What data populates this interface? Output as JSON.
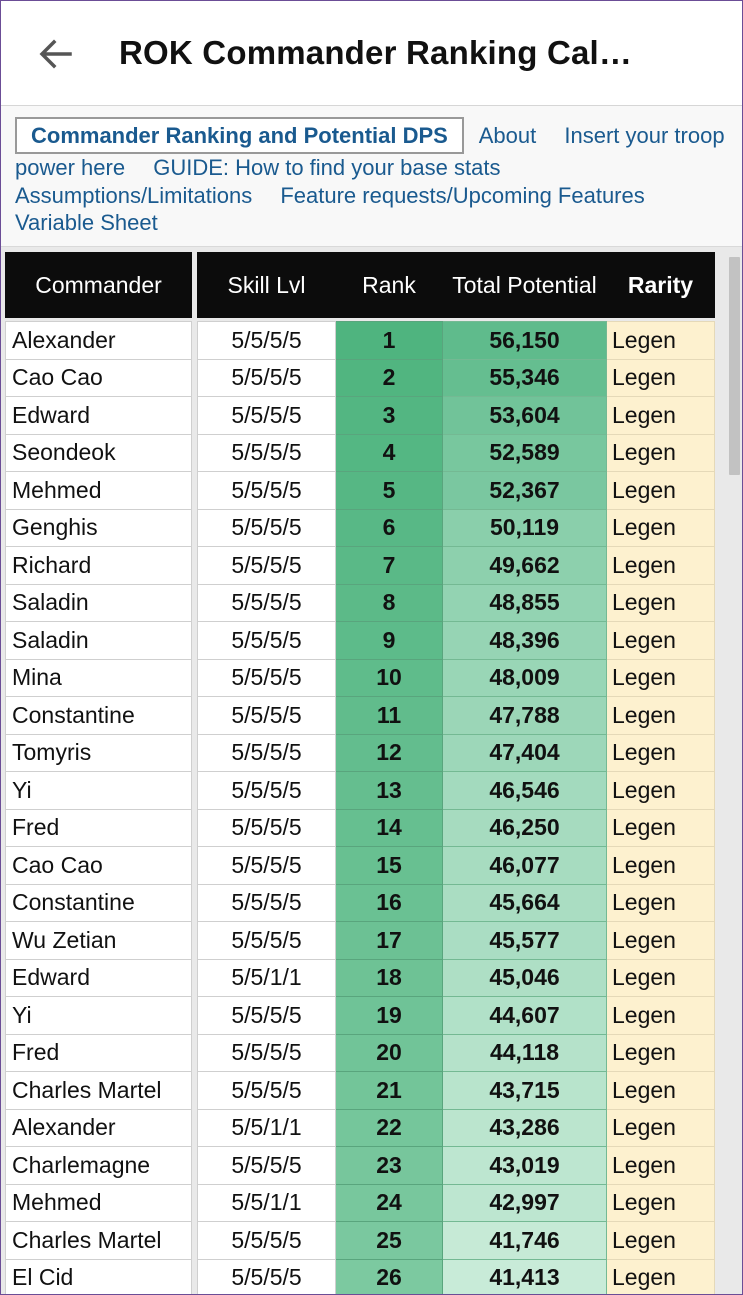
{
  "app": {
    "title": "ROK Commander Ranking Cal…",
    "back_icon": "arrow-left-icon"
  },
  "tabs": {
    "items": [
      {
        "label": "Commander Ranking and Potential DPS",
        "active": true
      },
      {
        "label": "About",
        "active": false
      },
      {
        "label": "Insert your troop power here",
        "active": false
      },
      {
        "label": "GUIDE: How to find your base stats",
        "active": false
      },
      {
        "label": "Assumptions/Limitations",
        "active": false
      },
      {
        "label": "Feature requests/Upcoming Features",
        "active": false
      },
      {
        "label": "Variable Sheet",
        "active": false
      }
    ]
  },
  "table": {
    "headers": {
      "commander": "Commander",
      "skill": "Skill Lvl",
      "rank": "Rank",
      "potential": "Total Potential",
      "rarity": "Rarity"
    },
    "rows": [
      {
        "commander": "Alexander",
        "skill": "5/5/5/5",
        "rank": "1",
        "potential": "56,150",
        "rarity": "Legen"
      },
      {
        "commander": "Cao Cao",
        "skill": "5/5/5/5",
        "rank": "2",
        "potential": "55,346",
        "rarity": "Legen"
      },
      {
        "commander": "Edward",
        "skill": "5/5/5/5",
        "rank": "3",
        "potential": "53,604",
        "rarity": "Legen"
      },
      {
        "commander": "Seondeok",
        "skill": "5/5/5/5",
        "rank": "4",
        "potential": "52,589",
        "rarity": "Legen"
      },
      {
        "commander": "Mehmed",
        "skill": "5/5/5/5",
        "rank": "5",
        "potential": "52,367",
        "rarity": "Legen"
      },
      {
        "commander": "Genghis",
        "skill": "5/5/5/5",
        "rank": "6",
        "potential": "50,119",
        "rarity": "Legen"
      },
      {
        "commander": "Richard",
        "skill": "5/5/5/5",
        "rank": "7",
        "potential": "49,662",
        "rarity": "Legen"
      },
      {
        "commander": "Saladin",
        "skill": "5/5/5/5",
        "rank": "8",
        "potential": "48,855",
        "rarity": "Legen"
      },
      {
        "commander": "Saladin",
        "skill": "5/5/5/5",
        "rank": "9",
        "potential": "48,396",
        "rarity": "Legen"
      },
      {
        "commander": "Mina",
        "skill": "5/5/5/5",
        "rank": "10",
        "potential": "48,009",
        "rarity": "Legen"
      },
      {
        "commander": "Constantine",
        "skill": "5/5/5/5",
        "rank": "11",
        "potential": "47,788",
        "rarity": "Legen"
      },
      {
        "commander": "Tomyris",
        "skill": "5/5/5/5",
        "rank": "12",
        "potential": "47,404",
        "rarity": "Legen"
      },
      {
        "commander": "Yi",
        "skill": "5/5/5/5",
        "rank": "13",
        "potential": "46,546",
        "rarity": "Legen"
      },
      {
        "commander": "Fred",
        "skill": "5/5/5/5",
        "rank": "14",
        "potential": "46,250",
        "rarity": "Legen"
      },
      {
        "commander": "Cao Cao",
        "skill": "5/5/5/5",
        "rank": "15",
        "potential": "46,077",
        "rarity": "Legen"
      },
      {
        "commander": "Constantine",
        "skill": "5/5/5/5",
        "rank": "16",
        "potential": "45,664",
        "rarity": "Legen"
      },
      {
        "commander": "Wu Zetian",
        "skill": "5/5/5/5",
        "rank": "17",
        "potential": "45,577",
        "rarity": "Legen"
      },
      {
        "commander": "Edward",
        "skill": "5/5/1/1",
        "rank": "18",
        "potential": "45,046",
        "rarity": "Legen"
      },
      {
        "commander": "Yi",
        "skill": "5/5/5/5",
        "rank": "19",
        "potential": "44,607",
        "rarity": "Legen"
      },
      {
        "commander": "Fred",
        "skill": "5/5/5/5",
        "rank": "20",
        "potential": "44,118",
        "rarity": "Legen"
      },
      {
        "commander": "Charles Martel",
        "skill": "5/5/5/5",
        "rank": "21",
        "potential": "43,715",
        "rarity": "Legen"
      },
      {
        "commander": "Alexander",
        "skill": "5/5/1/1",
        "rank": "22",
        "potential": "43,286",
        "rarity": "Legen"
      },
      {
        "commander": "Charlemagne",
        "skill": "5/5/5/5",
        "rank": "23",
        "potential": "43,019",
        "rarity": "Legen"
      },
      {
        "commander": "Mehmed",
        "skill": "5/5/1/1",
        "rank": "24",
        "potential": "42,997",
        "rarity": "Legen"
      },
      {
        "commander": "Charles Martel",
        "skill": "5/5/5/5",
        "rank": "25",
        "potential": "41,746",
        "rarity": "Legen"
      },
      {
        "commander": "El Cid",
        "skill": "5/5/5/5",
        "rank": "26",
        "potential": "41,413",
        "rarity": "Legen"
      }
    ]
  },
  "colors": {
    "accent_link": "#1a5a8f",
    "header_bg": "#0c0c0c",
    "rank_green": "#57b987",
    "potential_high": "#5fbb8c",
    "potential_low": "#c8ebd8",
    "rarity_bg": "#fdf1cf"
  }
}
